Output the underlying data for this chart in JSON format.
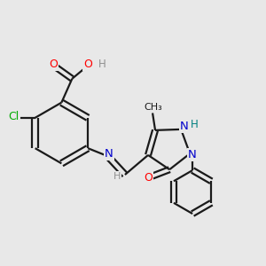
{
  "background_color": "#e8e8e8",
  "bond_color": "#1a1a1a",
  "atom_colors": {
    "O": "#ff0000",
    "N": "#0000cc",
    "NH": "#008080",
    "Cl": "#00aa00",
    "C": "#1a1a1a",
    "H": "#909090"
  },
  "figsize": [
    3.0,
    3.0
  ],
  "dpi": 100
}
